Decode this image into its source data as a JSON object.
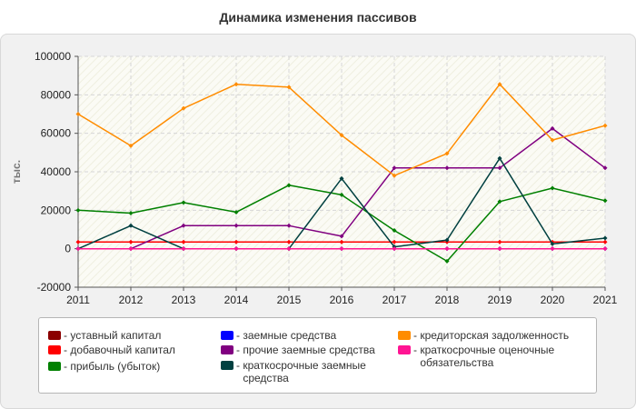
{
  "chart_data": {
    "type": "line",
    "title": "Динамика изменения пассивов",
    "ylabel": "тыс.",
    "xlabel": "",
    "x": [
      "2011",
      "2012",
      "2013",
      "2014",
      "2015",
      "2016",
      "2017",
      "2018",
      "2019",
      "2020",
      "2021"
    ],
    "ylim": [
      -20000,
      100000
    ],
    "yticks": [
      "-20000",
      "0",
      "20000",
      "40000",
      "60000",
      "80000",
      "100000"
    ],
    "grid": true,
    "legend_position": "bottom",
    "series": [
      {
        "name": "уставный капитал",
        "color": "#8b0000",
        "values": [
          0,
          0,
          0,
          0,
          0,
          0,
          0,
          0,
          0,
          0,
          0
        ]
      },
      {
        "name": "добавочный капитал",
        "color": "#ff0000",
        "values": [
          3500,
          3500,
          3500,
          3500,
          3500,
          3500,
          3500,
          3500,
          3500,
          3500,
          3500
        ]
      },
      {
        "name": "прибыль (убыток)",
        "color": "#008000",
        "values": [
          20000,
          18500,
          24000,
          19000,
          33000,
          28000,
          9500,
          -6500,
          24500,
          31500,
          25000
        ]
      },
      {
        "name": "заемные средства",
        "color": "#0000ff",
        "values": [
          0,
          0,
          0,
          0,
          0,
          0,
          0,
          0,
          0,
          0,
          0
        ]
      },
      {
        "name": "прочие заемные средства",
        "color": "#800080",
        "values": [
          0,
          0,
          12000,
          12000,
          12000,
          6500,
          42000,
          42000,
          42000,
          62500,
          42000
        ]
      },
      {
        "name": "краткосрочные заемные средства",
        "color": "#004040",
        "values": [
          0,
          12000,
          0,
          0,
          0,
          36500,
          1000,
          4500,
          47000,
          2500,
          5500
        ]
      },
      {
        "name": "кредиторская задолженность",
        "color": "#ff8c00",
        "values": [
          70000,
          53500,
          73000,
          85500,
          84000,
          59000,
          38000,
          49500,
          85500,
          56500,
          64000
        ]
      },
      {
        "name": "краткосрочные оценочные обязательства",
        "color": "#ff1493",
        "values": [
          0,
          0,
          0,
          0,
          0,
          0,
          0,
          0,
          0,
          0,
          0
        ]
      }
    ]
  },
  "legend": [
    {
      "label": "уставный капитал",
      "color": "#8b0000"
    },
    {
      "label": "добавочный капитал",
      "color": "#ff0000"
    },
    {
      "label": "прибыль (убыток)",
      "color": "#008000"
    },
    {
      "label": "заемные средства",
      "color": "#0000ff"
    },
    {
      "label": "прочие заемные средства",
      "color": "#800080"
    },
    {
      "label": "краткосрочные заемные средства",
      "color": "#004040"
    },
    {
      "label": "кредиторская задолженность",
      "color": "#ff8c00"
    },
    {
      "label": "краткосрочные оценочные обязательства",
      "color": "#ff1493"
    }
  ]
}
